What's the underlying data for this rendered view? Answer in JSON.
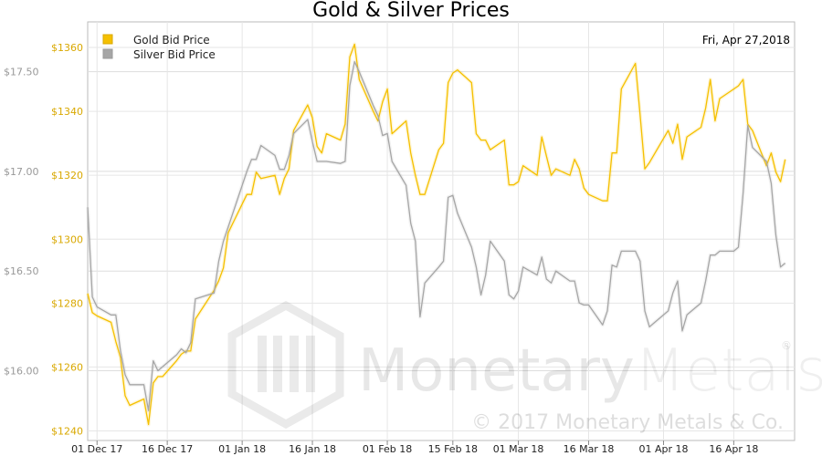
{
  "chart_data": {
    "type": "line",
    "title": "Gold & Silver Prices",
    "date_label": "Fri, Apr 27,2018",
    "xlabel": "",
    "ylabel": "",
    "x_ticks": [
      "01 Dec 17",
      "16 Dec 17",
      "01 Jan 18",
      "16 Jan 18",
      "01 Feb 18",
      "15 Feb 18",
      "01 Mar 18",
      "16 Mar 18",
      "01 Apr 18",
      "16 Apr 18"
    ],
    "x_range": [
      "2017-11-29",
      "2018-04-29"
    ],
    "y_left": {
      "series": "Gold Bid Price",
      "range": [
        1237,
        1368
      ],
      "ticks": [
        1240,
        1260,
        1280,
        1300,
        1320,
        1340,
        1360
      ],
      "tick_labels": [
        "$1240",
        "$1260",
        "$1280",
        "$1300",
        "$1320",
        "$1340",
        "$1360"
      ],
      "color": "#f5c000"
    },
    "y_right": {
      "series": "Silver Bid Price",
      "range": [
        15.65,
        17.75
      ],
      "ticks": [
        16.0,
        16.5,
        17.0,
        17.5
      ],
      "tick_labels": [
        "$16.00",
        "$16.50",
        "$17.00",
        "$17.50"
      ],
      "color": "#a6a6a6"
    },
    "grid": true,
    "legend": {
      "placement": "top-left",
      "entries": [
        {
          "name": "Gold Bid Price",
          "color": "#f5c000"
        },
        {
          "name": "Silver Bid Price",
          "color": "#a6a6a6"
        }
      ]
    },
    "series": [
      {
        "name": "Gold Bid Price",
        "axis": "left",
        "color": "#f5c000",
        "points": [
          [
            "2017-11-29",
            1283
          ],
          [
            "2017-11-30",
            1277
          ],
          [
            "2017-12-01",
            1276
          ],
          [
            "2017-12-04",
            1274
          ],
          [
            "2017-12-05",
            1268
          ],
          [
            "2017-12-06",
            1263
          ],
          [
            "2017-12-07",
            1251
          ],
          [
            "2017-12-08",
            1248
          ],
          [
            "2017-12-11",
            1250
          ],
          [
            "2017-12-12",
            1242
          ],
          [
            "2017-12-13",
            1255
          ],
          [
            "2017-12-14",
            1257
          ],
          [
            "2017-12-15",
            1257
          ],
          [
            "2017-12-18",
            1262
          ],
          [
            "2017-12-19",
            1264
          ],
          [
            "2017-12-20",
            1265
          ],
          [
            "2017-12-21",
            1265
          ],
          [
            "2017-12-22",
            1275
          ],
          [
            "2017-12-26",
            1284
          ],
          [
            "2017-12-27",
            1287
          ],
          [
            "2017-12-28",
            1291
          ],
          [
            "2017-12-29",
            1302
          ],
          [
            "2018-01-02",
            1314
          ],
          [
            "2018-01-03",
            1314
          ],
          [
            "2018-01-04",
            1321
          ],
          [
            "2018-01-05",
            1319
          ],
          [
            "2018-01-08",
            1320
          ],
          [
            "2018-01-09",
            1314
          ],
          [
            "2018-01-10",
            1319
          ],
          [
            "2018-01-11",
            1322
          ],
          [
            "2018-01-12",
            1334
          ],
          [
            "2018-01-15",
            1342
          ],
          [
            "2018-01-16",
            1338
          ],
          [
            "2018-01-17",
            1329
          ],
          [
            "2018-01-18",
            1327
          ],
          [
            "2018-01-19",
            1333
          ],
          [
            "2018-01-22",
            1331
          ],
          [
            "2018-01-23",
            1336
          ],
          [
            "2018-01-24",
            1357
          ],
          [
            "2018-01-25",
            1361
          ],
          [
            "2018-01-26",
            1350
          ],
          [
            "2018-01-29",
            1340
          ],
          [
            "2018-01-30",
            1337
          ],
          [
            "2018-01-31",
            1343
          ],
          [
            "2018-02-01",
            1347
          ],
          [
            "2018-02-02",
            1333
          ],
          [
            "2018-02-05",
            1337
          ],
          [
            "2018-02-06",
            1327
          ],
          [
            "2018-02-07",
            1320
          ],
          [
            "2018-02-08",
            1314
          ],
          [
            "2018-02-09",
            1314
          ],
          [
            "2018-02-12",
            1328
          ],
          [
            "2018-02-13",
            1330
          ],
          [
            "2018-02-14",
            1349
          ],
          [
            "2018-02-15",
            1352
          ],
          [
            "2018-02-16",
            1353
          ],
          [
            "2018-02-19",
            1349
          ],
          [
            "2018-02-20",
            1333
          ],
          [
            "2018-02-21",
            1331
          ],
          [
            "2018-02-22",
            1331
          ],
          [
            "2018-02-23",
            1328
          ],
          [
            "2018-02-26",
            1331
          ],
          [
            "2018-02-27",
            1317
          ],
          [
            "2018-02-28",
            1317
          ],
          [
            "2018-03-01",
            1318
          ],
          [
            "2018-03-02",
            1323
          ],
          [
            "2018-03-05",
            1320
          ],
          [
            "2018-03-06",
            1332
          ],
          [
            "2018-03-07",
            1326
          ],
          [
            "2018-03-08",
            1320
          ],
          [
            "2018-03-09",
            1322
          ],
          [
            "2018-03-12",
            1320
          ],
          [
            "2018-03-13",
            1325
          ],
          [
            "2018-03-14",
            1322
          ],
          [
            "2018-03-15",
            1316
          ],
          [
            "2018-03-16",
            1314
          ],
          [
            "2018-03-19",
            1312
          ],
          [
            "2018-03-20",
            1312
          ],
          [
            "2018-03-21",
            1327
          ],
          [
            "2018-03-22",
            1327
          ],
          [
            "2018-03-23",
            1347
          ],
          [
            "2018-03-26",
            1355
          ],
          [
            "2018-03-27",
            1339
          ],
          [
            "2018-03-28",
            1322
          ],
          [
            "2018-03-29",
            1324
          ],
          [
            "2018-04-02",
            1334
          ],
          [
            "2018-04-03",
            1330
          ],
          [
            "2018-04-04",
            1336
          ],
          [
            "2018-04-05",
            1325
          ],
          [
            "2018-04-06",
            1332
          ],
          [
            "2018-04-09",
            1335
          ],
          [
            "2018-04-10",
            1341
          ],
          [
            "2018-04-11",
            1350
          ],
          [
            "2018-04-12",
            1337
          ],
          [
            "2018-04-13",
            1344
          ],
          [
            "2018-04-16",
            1347
          ],
          [
            "2018-04-17",
            1348
          ],
          [
            "2018-04-18",
            1350
          ],
          [
            "2018-04-19",
            1336
          ],
          [
            "2018-04-20",
            1334
          ],
          [
            "2018-04-23",
            1323
          ],
          [
            "2018-04-24",
            1327
          ],
          [
            "2018-04-25",
            1321
          ],
          [
            "2018-04-26",
            1318
          ],
          [
            "2018-04-27",
            1325
          ]
        ]
      },
      {
        "name": "Silver Bid Price",
        "axis": "right",
        "color": "#a6a6a6",
        "points": [
          [
            "2017-11-29",
            16.82
          ],
          [
            "2017-11-30",
            16.37
          ],
          [
            "2017-12-01",
            16.32
          ],
          [
            "2017-12-04",
            16.28
          ],
          [
            "2017-12-05",
            16.28
          ],
          [
            "2017-12-06",
            16.1
          ],
          [
            "2017-12-07",
            15.98
          ],
          [
            "2017-12-08",
            15.93
          ],
          [
            "2017-12-11",
            15.93
          ],
          [
            "2017-12-12",
            15.8
          ],
          [
            "2017-12-13",
            16.05
          ],
          [
            "2017-12-14",
            16.0
          ],
          [
            "2017-12-15",
            16.02
          ],
          [
            "2017-12-18",
            16.08
          ],
          [
            "2017-12-19",
            16.11
          ],
          [
            "2017-12-20",
            16.09
          ],
          [
            "2017-12-21",
            16.14
          ],
          [
            "2017-12-22",
            16.36
          ],
          [
            "2017-12-26",
            16.39
          ],
          [
            "2017-12-27",
            16.55
          ],
          [
            "2017-12-28",
            16.65
          ],
          [
            "2017-12-29",
            16.72
          ],
          [
            "2018-01-02",
            17.0
          ],
          [
            "2018-01-03",
            17.06
          ],
          [
            "2018-01-04",
            17.06
          ],
          [
            "2018-01-05",
            17.13
          ],
          [
            "2018-01-08",
            17.08
          ],
          [
            "2018-01-09",
            17.01
          ],
          [
            "2018-01-10",
            17.01
          ],
          [
            "2018-01-11",
            17.08
          ],
          [
            "2018-01-12",
            17.19
          ],
          [
            "2018-01-15",
            17.26
          ],
          [
            "2018-01-16",
            17.15
          ],
          [
            "2018-01-17",
            17.05
          ],
          [
            "2018-01-18",
            17.05
          ],
          [
            "2018-01-19",
            17.05
          ],
          [
            "2018-01-22",
            17.04
          ],
          [
            "2018-01-23",
            17.05
          ],
          [
            "2018-01-24",
            17.43
          ],
          [
            "2018-01-25",
            17.55
          ],
          [
            "2018-01-26",
            17.5
          ],
          [
            "2018-01-29",
            17.33
          ],
          [
            "2018-01-30",
            17.28
          ],
          [
            "2018-01-31",
            17.18
          ],
          [
            "2018-02-01",
            17.19
          ],
          [
            "2018-02-02",
            17.05
          ],
          [
            "2018-02-05",
            16.93
          ],
          [
            "2018-02-06",
            16.74
          ],
          [
            "2018-02-07",
            16.65
          ],
          [
            "2018-02-08",
            16.27
          ],
          [
            "2018-02-09",
            16.44
          ],
          [
            "2018-02-12",
            16.52
          ],
          [
            "2018-02-13",
            16.55
          ],
          [
            "2018-02-14",
            16.87
          ],
          [
            "2018-02-15",
            16.88
          ],
          [
            "2018-02-16",
            16.79
          ],
          [
            "2018-02-19",
            16.62
          ],
          [
            "2018-02-20",
            16.52
          ],
          [
            "2018-02-21",
            16.38
          ],
          [
            "2018-02-22",
            16.48
          ],
          [
            "2018-02-23",
            16.65
          ],
          [
            "2018-02-26",
            16.55
          ],
          [
            "2018-02-27",
            16.38
          ],
          [
            "2018-02-28",
            16.36
          ],
          [
            "2018-03-01",
            16.4
          ],
          [
            "2018-03-02",
            16.52
          ],
          [
            "2018-03-05",
            16.48
          ],
          [
            "2018-03-06",
            16.57
          ],
          [
            "2018-03-07",
            16.46
          ],
          [
            "2018-03-08",
            16.44
          ],
          [
            "2018-03-09",
            16.5
          ],
          [
            "2018-03-12",
            16.45
          ],
          [
            "2018-03-13",
            16.45
          ],
          [
            "2018-03-14",
            16.34
          ],
          [
            "2018-03-15",
            16.33
          ],
          [
            "2018-03-16",
            16.33
          ],
          [
            "2018-03-19",
            16.23
          ],
          [
            "2018-03-20",
            16.3
          ],
          [
            "2018-03-21",
            16.53
          ],
          [
            "2018-03-22",
            16.52
          ],
          [
            "2018-03-23",
            16.6
          ],
          [
            "2018-03-26",
            16.6
          ],
          [
            "2018-03-27",
            16.55
          ],
          [
            "2018-03-28",
            16.3
          ],
          [
            "2018-03-29",
            16.22
          ],
          [
            "2018-04-02",
            16.3
          ],
          [
            "2018-04-03",
            16.39
          ],
          [
            "2018-04-04",
            16.45
          ],
          [
            "2018-04-05",
            16.2
          ],
          [
            "2018-04-06",
            16.28
          ],
          [
            "2018-04-09",
            16.34
          ],
          [
            "2018-04-10",
            16.45
          ],
          [
            "2018-04-11",
            16.58
          ],
          [
            "2018-04-12",
            16.58
          ],
          [
            "2018-04-13",
            16.6
          ],
          [
            "2018-04-16",
            16.6
          ],
          [
            "2018-04-17",
            16.62
          ],
          [
            "2018-04-18",
            16.89
          ],
          [
            "2018-04-19",
            17.23
          ],
          [
            "2018-04-20",
            17.12
          ],
          [
            "2018-04-23",
            17.05
          ],
          [
            "2018-04-24",
            16.94
          ],
          [
            "2018-04-25",
            16.68
          ],
          [
            "2018-04-26",
            16.52
          ],
          [
            "2018-04-27",
            16.54
          ]
        ]
      }
    ]
  },
  "watermark": {
    "name_part1": "Monetary",
    "name_part2": "Metals",
    "registered": "®",
    "copyright": "© 2017 Monetary Metals & Co."
  }
}
